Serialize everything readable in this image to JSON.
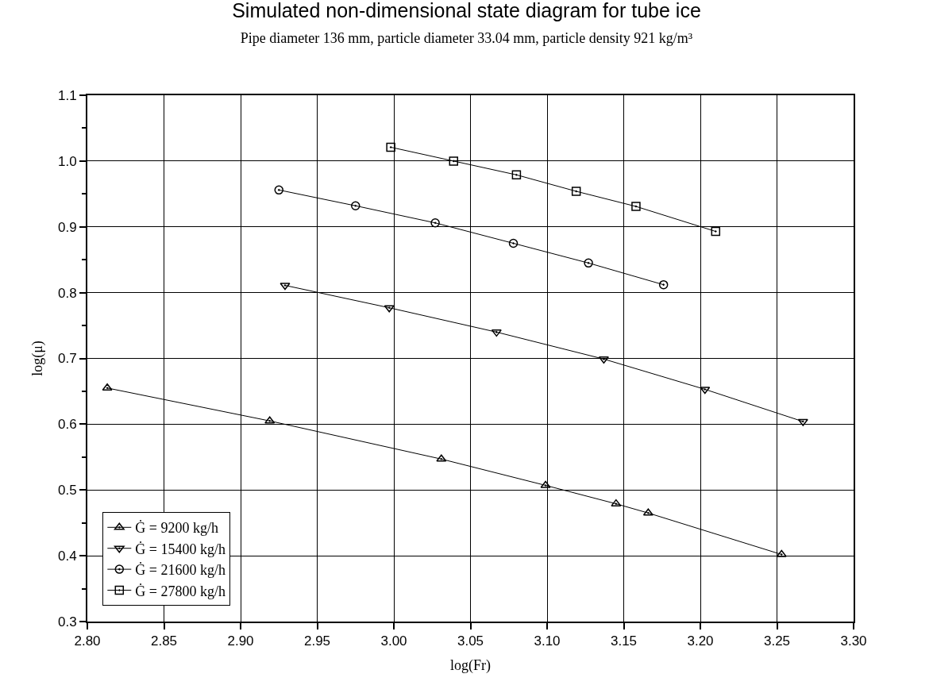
{
  "chart_data": {
    "type": "line",
    "title": "Simulated non-dimensional state diagram for tube ice",
    "subtitle": "Pipe diameter 136 mm, particle diameter 33.04 mm, particle density 921 kg/m³",
    "xlabel": "log(Fr)",
    "ylabel": "log(μ)",
    "series": [
      {
        "name": "Ġ = 9200 kg/h",
        "color": "#000000",
        "marker": "triangle",
        "x": [
          2.813,
          2.919,
          3.031,
          3.099,
          3.145,
          3.166,
          3.253
        ],
        "values": [
          0.655,
          0.605,
          0.547,
          0.507,
          0.479,
          0.465,
          0.402
        ]
      },
      {
        "name": "Ġ = 15400 kg/h",
        "color": "#000000",
        "marker": "triangle-down",
        "x": [
          2.929,
          2.997,
          3.067,
          3.137,
          3.203,
          3.267
        ],
        "values": [
          0.811,
          0.777,
          0.74,
          0.699,
          0.653,
          0.604
        ]
      },
      {
        "name": "Ġ = 21600 kg/h",
        "color": "#000000",
        "marker": "circle",
        "x": [
          2.925,
          2.975,
          3.027,
          3.078,
          3.127,
          3.176
        ],
        "values": [
          0.956,
          0.932,
          0.906,
          0.875,
          0.845,
          0.812
        ]
      },
      {
        "name": "Ġ = 27800 kg/h",
        "color": "#000000",
        "marker": "square",
        "x": [
          2.998,
          3.039,
          3.08,
          3.119,
          3.158,
          3.21
        ],
        "values": [
          1.021,
          1.0,
          0.979,
          0.954,
          0.931,
          0.893
        ]
      }
    ],
    "xlim": [
      2.8,
      3.3
    ],
    "xticks": [
      {
        "value": 2.8,
        "label": "2.80"
      },
      {
        "value": 2.85,
        "label": "2.85"
      },
      {
        "value": 2.9,
        "label": "2.90"
      },
      {
        "value": 2.95,
        "label": "2.95"
      },
      {
        "value": 3.0,
        "label": "3.00"
      },
      {
        "value": 3.05,
        "label": "3.05"
      },
      {
        "value": 3.1,
        "label": "3.10"
      },
      {
        "value": 3.15,
        "label": "3.15"
      },
      {
        "value": 3.2,
        "label": "3.20"
      },
      {
        "value": 3.25,
        "label": "3.25"
      },
      {
        "value": 3.3,
        "label": "3.30"
      }
    ],
    "ylim": [
      0.3,
      1.1
    ],
    "yticks": [
      0.3,
      0.4,
      0.5,
      0.6,
      0.7,
      0.8,
      0.9,
      {
        "value": 1.0,
        "label": "1.0"
      },
      1.1,
      {
        "value": 0.35,
        "label": null
      },
      {
        "value": 0.45,
        "label": null
      },
      {
        "value": 0.55,
        "label": null
      },
      {
        "value": 0.65,
        "label": null
      },
      {
        "value": 0.75,
        "label": null
      },
      {
        "value": 0.85,
        "label": null
      },
      {
        "value": 0.95,
        "label": null
      },
      {
        "value": 1.05,
        "label": null
      }
    ],
    "grid": true,
    "legend": "bottom left",
    "line_style": "solid"
  }
}
